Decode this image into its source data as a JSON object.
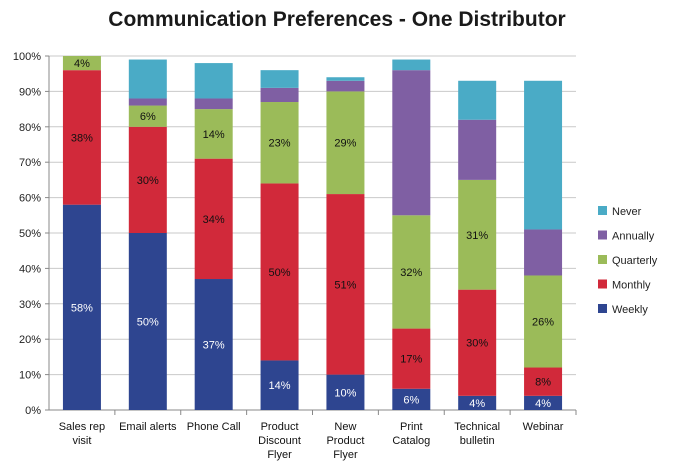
{
  "chart_data": {
    "type": "bar",
    "stacked": true,
    "title": "Communication Preferences - One Distributor",
    "xlabel": "",
    "ylabel": "",
    "ylim": [
      0,
      1
    ],
    "y_tick_labels": [
      "0%",
      "10%",
      "20%",
      "30%",
      "40%",
      "50%",
      "60%",
      "70%",
      "80%",
      "90%",
      "100%"
    ],
    "grid": true,
    "legend_position": "right",
    "categories": [
      [
        "Sales rep",
        "visit"
      ],
      [
        "Email alerts"
      ],
      [
        "Phone Call"
      ],
      [
        "Product",
        "Discount",
        "Flyer"
      ],
      [
        "New",
        "Product",
        "Flyer"
      ],
      [
        "Print",
        "Catalog"
      ],
      [
        "Technical",
        "bulletin"
      ],
      [
        "Webinar"
      ]
    ],
    "series": [
      {
        "name": "Weekly",
        "color": "#2e4590",
        "label_color": "#ffffff",
        "values": [
          0.58,
          0.5,
          0.37,
          0.14,
          0.1,
          0.06,
          0.04,
          0.04
        ],
        "labels": [
          "58%",
          "50%",
          "37%",
          "14%",
          "10%",
          "6%",
          "4%",
          "4%"
        ]
      },
      {
        "name": "Monthly",
        "color": "#d1293a",
        "label_color": "#111111",
        "values": [
          0.38,
          0.3,
          0.34,
          0.5,
          0.51,
          0.17,
          0.3,
          0.08
        ],
        "labels": [
          "38%",
          "30%",
          "34%",
          "50%",
          "51%",
          "17%",
          "30%",
          "8%"
        ]
      },
      {
        "name": "Quarterly",
        "color": "#9bbb59",
        "label_color": "#111111",
        "values": [
          0.04,
          0.06,
          0.14,
          0.23,
          0.29,
          0.32,
          0.31,
          0.26
        ],
        "labels": [
          "4%",
          "6%",
          "14%",
          "23%",
          "29%",
          "32%",
          "31%",
          "26%"
        ]
      },
      {
        "name": "Annually",
        "color": "#7f5fa3",
        "label_color": "#111111",
        "values": [
          0.0,
          0.02,
          0.03,
          0.04,
          0.03,
          0.41,
          0.17,
          0.13
        ],
        "labels": [
          "",
          "",
          "",
          "",
          "",
          "",
          "",
          ""
        ]
      },
      {
        "name": "Never",
        "color": "#4aabc6",
        "label_color": "#111111",
        "values": [
          0.0,
          0.11,
          0.1,
          0.05,
          0.01,
          0.03,
          0.11,
          0.42
        ],
        "labels": [
          "",
          "",
          "",
          "",
          "",
          "",
          "",
          ""
        ]
      }
    ],
    "legend_order": [
      "Never",
      "Annually",
      "Quarterly",
      "Monthly",
      "Weekly"
    ]
  }
}
